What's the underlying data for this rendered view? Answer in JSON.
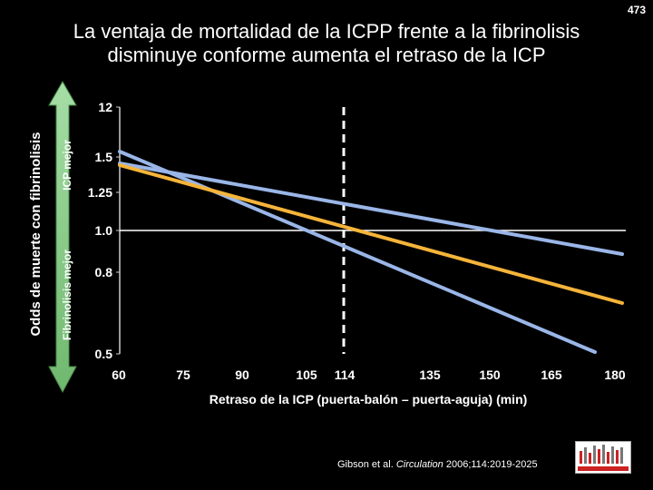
{
  "slide_number": "473",
  "title_line1": "La ventaja de mortalidad de la ICPP frente a la fibrinolisis",
  "title_line2": "disminuye conforme aumenta el retraso de la ICP",
  "citation": {
    "authors": "Gibson et al. ",
    "journal": "Circulation",
    "details": " 2006;114:2019-2025"
  },
  "left_labels": {
    "outer": "Odds de muerte con fibrinolisis",
    "upper": "ICP mejor",
    "lower": "Fibrinolisis mejor"
  },
  "colors": {
    "background": "#000000",
    "blue_lines": "#9ab6e8",
    "orange_line": "#f5b43a",
    "arrow_green": "#8fd08f",
    "dashed_line": "#ffffff"
  },
  "chart_data": {
    "type": "line",
    "xlabel": "Retraso de la ICP (puerta-balón – puerta-aguja) (min)",
    "ylabel": "Odds de muerte con fibrinolisis",
    "x_ticks": [
      60,
      75,
      90,
      105,
      114,
      135,
      150,
      165,
      180
    ],
    "x_tick_labels": [
      "60",
      "75",
      "90",
      "105",
      "114",
      "135",
      "150",
      "165",
      "180"
    ],
    "y_ticks": [
      "12",
      "1.5",
      "1.25",
      "1.0",
      "0.8",
      "0.5"
    ],
    "xlim": [
      60,
      180
    ],
    "reference_line_y": "1.0",
    "dashed_vertical_x": 114,
    "series": [
      {
        "color": "#9ab6e8",
        "points": [
          [
            60,
            1.52
          ],
          [
            180,
            0.52
          ]
        ]
      },
      {
        "color": "#9ab6e8",
        "points": [
          [
            60,
            1.42
          ],
          [
            180,
            0.88
          ]
        ]
      },
      {
        "color": "#f5b43a",
        "points": [
          [
            60,
            1.4
          ],
          [
            180,
            0.72
          ]
        ]
      }
    ]
  }
}
